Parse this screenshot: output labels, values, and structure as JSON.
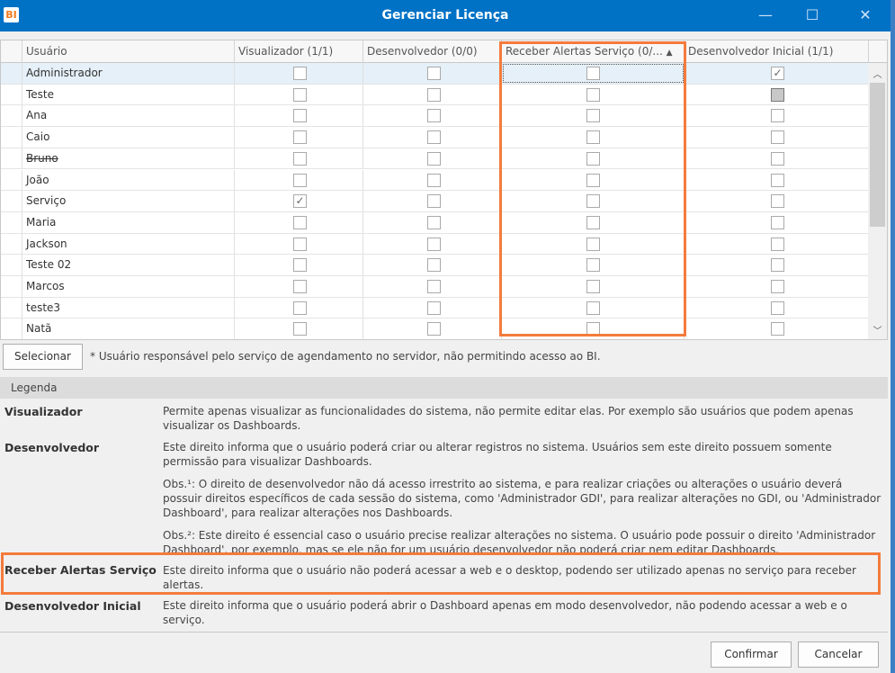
{
  "window": {
    "title": "Gerenciar Licença",
    "logo": "BI",
    "controls": [
      "minimize-icon",
      "maximize-icon",
      "close-icon"
    ]
  },
  "grid": {
    "columns": [
      "Usuário",
      "Visualizador (1/1)",
      "Desenvolvedor (0/0)",
      "Receber Alertas Serviço (0/...",
      "Desenvolvedor Inicial (1/1)"
    ],
    "sort_indicator": "▲",
    "rows": [
      {
        "name": "Administrador",
        "visualizador": false,
        "desenvolvedor": false,
        "alertas": false,
        "inicial": "checked",
        "selected": true
      },
      {
        "name": "Teste",
        "visualizador": false,
        "desenvolvedor": false,
        "alertas": false,
        "inicial": "indeterminate"
      },
      {
        "name": "Ana",
        "visualizador": false,
        "desenvolvedor": false,
        "alertas": false,
        "inicial": "unchecked"
      },
      {
        "name": "Caio",
        "visualizador": false,
        "desenvolvedor": false,
        "alertas": false,
        "inicial": "unchecked"
      },
      {
        "name": "Bruno",
        "strikethrough": true,
        "visualizador": false,
        "desenvolvedor": false,
        "alertas": false,
        "inicial": "unchecked"
      },
      {
        "name": "João",
        "visualizador": false,
        "desenvolvedor": false,
        "alertas": false,
        "inicial": "unchecked"
      },
      {
        "name": "Serviço",
        "visualizador": true,
        "desenvolvedor": false,
        "alertas": false,
        "inicial": "unchecked"
      },
      {
        "name": "Maria",
        "visualizador": false,
        "desenvolvedor": false,
        "alertas": false,
        "inicial": "unchecked"
      },
      {
        "name": "Jackson",
        "visualizador": false,
        "desenvolvedor": false,
        "alertas": false,
        "inicial": "unchecked"
      },
      {
        "name": "Teste 02",
        "visualizador": false,
        "desenvolvedor": false,
        "alertas": false,
        "inicial": "unchecked"
      },
      {
        "name": "Marcos",
        "visualizador": false,
        "desenvolvedor": false,
        "alertas": false,
        "inicial": "unchecked"
      },
      {
        "name": "teste3",
        "visualizador": false,
        "desenvolvedor": false,
        "alertas": false,
        "inicial": "unchecked"
      },
      {
        "name": "Natã",
        "visualizador": false,
        "desenvolvedor": false,
        "alertas": false,
        "inicial": "unchecked"
      }
    ]
  },
  "select_button": "Selecionar",
  "footnote": "* Usuário responsável pelo serviço de agendamento no servidor, não permitindo acesso ao BI.",
  "legend": {
    "title": "Legenda",
    "items": [
      {
        "term": "Visualizador",
        "desc": "Permite apenas visualizar as funcionalidades do sistema, não permite editar elas. Por exemplo são usuários que podem apenas visualizar os Dashboards."
      },
      {
        "term": "Desenvolvedor",
        "desc": "Este direito informa que o usuário poderá criar ou alterar registros no sistema. Usuários sem este direito possuem somente permissão para visualizar Dashboards."
      },
      {
        "term": "",
        "desc": "Obs.¹: O direito de desenvolvedor não dá acesso irrestrito ao sistema, e para realizar criações ou alterações o usuário deverá possuir direitos específicos de cada sessão do sistema, como 'Administrador GDI', para realizar alterações no GDI, ou 'Administrador Dashboard', para realizar alterações nos Dashboards."
      },
      {
        "term": "",
        "desc": "Obs.²: Este direito é essencial caso o usuário precise realizar alterações no sistema. O usuário pode possuir o direito 'Administrador Dashboard', por exemplo, mas se ele não for um usuário desenvolvedor não poderá criar nem editar Dashboards."
      },
      {
        "term": "Receber Alertas Serviço",
        "desc": "Este direito informa que o usuário não poderá acessar a web e o desktop, podendo ser utilizado apenas no serviço para receber alertas."
      },
      {
        "term": "Desenvolvedor Inicial",
        "desc": "Este direito informa que o usuário poderá abrir o Dashboard apenas em modo desenvolvedor, não podendo acessar a web e o serviço."
      }
    ]
  },
  "buttons": {
    "confirm": "Confirmar",
    "cancel": "Cancelar"
  },
  "colors": {
    "titlebar": "#0072c6",
    "highlight": "#f47b3c",
    "selected_row": "#e5f0f8"
  }
}
